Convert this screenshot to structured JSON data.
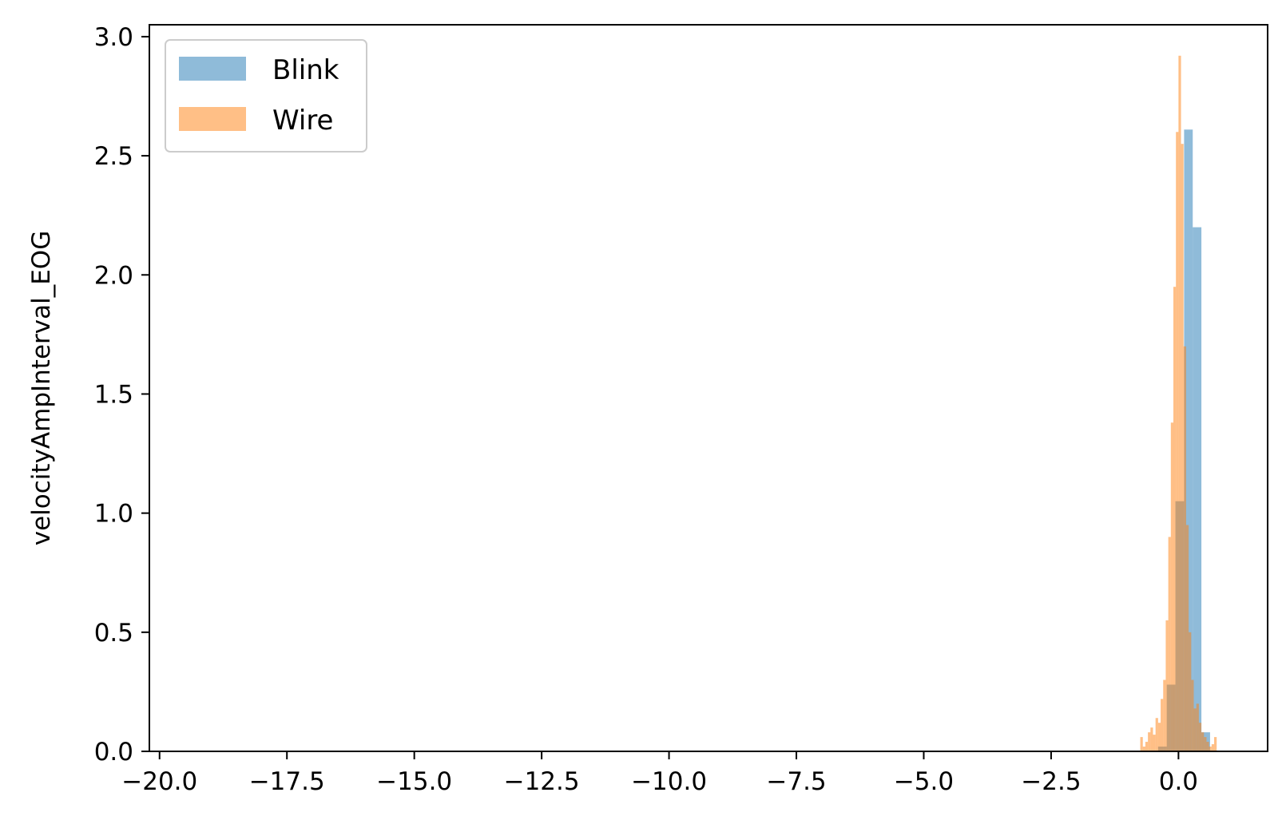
{
  "chart_data": {
    "type": "bar",
    "title": "",
    "xlabel": "",
    "ylabel": "velocityAmpInterval_EOG",
    "xlim": [
      -20.2,
      1.75
    ],
    "ylim": [
      0,
      3.05
    ],
    "x_ticks": [
      -20.0,
      -17.5,
      -15.0,
      -12.5,
      -10.0,
      -7.5,
      -5.0,
      -2.5,
      0.0
    ],
    "x_tick_labels": [
      "−20.0",
      "−17.5",
      "−15.0",
      "−12.5",
      "−10.0",
      "−7.5",
      "−5.0",
      "−2.5",
      "0.0"
    ],
    "y_ticks": [
      0.0,
      0.5,
      1.0,
      1.5,
      2.0,
      2.5,
      3.0
    ],
    "y_tick_labels": [
      "0.0",
      "0.5",
      "1.0",
      "1.5",
      "2.0",
      "2.5",
      "3.0"
    ],
    "grid": false,
    "legend_position": "top-left",
    "series": [
      {
        "name": "Blink",
        "color": "#1f77b4",
        "opacity": 0.5,
        "bins": [
          {
            "x0": -0.4,
            "x1": -0.23,
            "y": 0.02
          },
          {
            "x0": -0.23,
            "x1": -0.06,
            "y": 0.28
          },
          {
            "x0": -0.06,
            "x1": 0.11,
            "y": 1.05
          },
          {
            "x0": 0.11,
            "x1": 0.28,
            "y": 2.61
          },
          {
            "x0": 0.28,
            "x1": 0.45,
            "y": 2.2
          },
          {
            "x0": 0.45,
            "x1": 0.62,
            "y": 0.08
          }
        ]
      },
      {
        "name": "Wire",
        "color": "#ff7f0e",
        "opacity": 0.5,
        "bins": [
          {
            "x0": -0.75,
            "x1": -0.7,
            "y": 0.06
          },
          {
            "x0": -0.7,
            "x1": -0.65,
            "y": 0.02
          },
          {
            "x0": -0.65,
            "x1": -0.6,
            "y": 0.04
          },
          {
            "x0": -0.6,
            "x1": -0.55,
            "y": 0.08
          },
          {
            "x0": -0.55,
            "x1": -0.5,
            "y": 0.1
          },
          {
            "x0": -0.5,
            "x1": -0.45,
            "y": 0.07
          },
          {
            "x0": -0.45,
            "x1": -0.4,
            "y": 0.14
          },
          {
            "x0": -0.4,
            "x1": -0.35,
            "y": 0.12
          },
          {
            "x0": -0.35,
            "x1": -0.3,
            "y": 0.22
          },
          {
            "x0": -0.3,
            "x1": -0.25,
            "y": 0.3
          },
          {
            "x0": -0.25,
            "x1": -0.2,
            "y": 0.55
          },
          {
            "x0": -0.2,
            "x1": -0.15,
            "y": 0.9
          },
          {
            "x0": -0.15,
            "x1": -0.1,
            "y": 1.38
          },
          {
            "x0": -0.1,
            "x1": -0.05,
            "y": 1.95
          },
          {
            "x0": -0.05,
            "x1": 0.0,
            "y": 2.6
          },
          {
            "x0": 0.0,
            "x1": 0.05,
            "y": 2.92
          },
          {
            "x0": 0.05,
            "x1": 0.1,
            "y": 2.55
          },
          {
            "x0": 0.1,
            "x1": 0.15,
            "y": 1.7
          },
          {
            "x0": 0.15,
            "x1": 0.2,
            "y": 0.95
          },
          {
            "x0": 0.2,
            "x1": 0.25,
            "y": 0.5
          },
          {
            "x0": 0.25,
            "x1": 0.3,
            "y": 0.3
          },
          {
            "x0": 0.3,
            "x1": 0.35,
            "y": 0.18
          },
          {
            "x0": 0.35,
            "x1": 0.4,
            "y": 0.2
          },
          {
            "x0": 0.4,
            "x1": 0.45,
            "y": 0.12
          },
          {
            "x0": 0.45,
            "x1": 0.5,
            "y": 0.08
          },
          {
            "x0": 0.5,
            "x1": 0.55,
            "y": 0.06
          },
          {
            "x0": 0.55,
            "x1": 0.6,
            "y": 0.04
          },
          {
            "x0": 0.6,
            "x1": 0.65,
            "y": 0.02
          },
          {
            "x0": 0.65,
            "x1": 0.7,
            "y": 0.03
          },
          {
            "x0": 0.7,
            "x1": 0.75,
            "y": 0.06
          }
        ]
      }
    ]
  }
}
